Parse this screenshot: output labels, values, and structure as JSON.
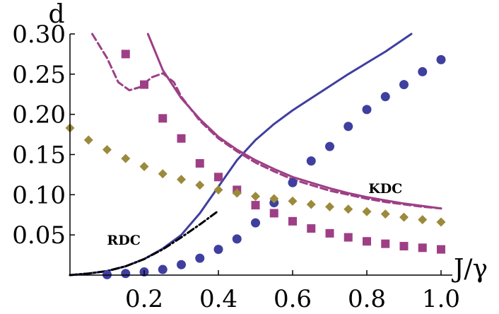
{
  "chart_data": {
    "type": "scatter",
    "xlabel": "J/γ",
    "ylabel": "d",
    "xlim": [
      0,
      1.0
    ],
    "ylim": [
      0,
      0.3
    ],
    "x_ticks": [
      "0.2",
      "0.4",
      "0.6",
      "0.8",
      "1.0"
    ],
    "x_tick_values": [
      0.2,
      0.4,
      0.6,
      0.8,
      1.0
    ],
    "y_ticks": [
      "0.05",
      "0.10",
      "0.15",
      "0.20",
      "0.25",
      "0.30"
    ],
    "y_tick_values": [
      0.05,
      0.1,
      0.15,
      0.2,
      0.25,
      0.3
    ],
    "annotations": [
      {
        "text": "KDC",
        "x": 0.85,
        "y": 0.102
      },
      {
        "text": "RDC",
        "x": 0.145,
        "y": 0.038
      }
    ],
    "series": [
      {
        "kind": "line",
        "style": "solid",
        "color": "#3f3f9f",
        "x": [
          0,
          0.05,
          0.1,
          0.15,
          0.2,
          0.25,
          0.3,
          0.35,
          0.4,
          0.45,
          0.5,
          0.55,
          0.6,
          0.65,
          0.7,
          0.75,
          0.8,
          0.85,
          0.92
        ],
        "y": [
          0,
          0.002,
          0.005,
          0.011,
          0.02,
          0.033,
          0.05,
          0.077,
          0.11,
          0.143,
          0.168,
          0.188,
          0.205,
          0.22,
          0.235,
          0.25,
          0.264,
          0.278,
          0.3
        ]
      },
      {
        "kind": "line",
        "style": "dashdot",
        "color": "#000000",
        "x": [
          0,
          0.05,
          0.1,
          0.15,
          0.2,
          0.25,
          0.3,
          0.35,
          0.4
        ],
        "y": [
          0,
          0.002,
          0.005,
          0.011,
          0.02,
          0.032,
          0.047,
          0.063,
          0.08
        ]
      },
      {
        "kind": "line",
        "style": "solid",
        "color": "#9e3f86",
        "x": [
          0.21,
          0.25,
          0.3,
          0.35,
          0.4,
          0.45,
          0.5,
          0.55,
          0.6,
          0.65,
          0.7,
          0.75,
          0.8,
          0.85,
          0.9,
          0.95,
          1.0
        ],
        "y": [
          0.3,
          0.255,
          0.22,
          0.194,
          0.172,
          0.156,
          0.143,
          0.132,
          0.122,
          0.115,
          0.108,
          0.102,
          0.097,
          0.093,
          0.089,
          0.086,
          0.083
        ]
      },
      {
        "kind": "line",
        "style": "dashed",
        "color": "#9e3f86",
        "x": [
          0.06,
          0.1,
          0.13,
          0.16,
          0.19,
          0.22,
          0.25,
          0.28,
          0.3,
          0.35,
          0.4,
          0.45,
          0.5,
          0.55,
          0.6,
          0.65,
          0.7,
          0.75,
          0.8,
          0.85,
          0.9,
          0.95,
          1.0
        ],
        "y": [
          0.3,
          0.27,
          0.24,
          0.23,
          0.234,
          0.246,
          0.251,
          0.24,
          0.222,
          0.192,
          0.17,
          0.154,
          0.14,
          0.129,
          0.119,
          0.112,
          0.105,
          0.1,
          0.095,
          0.091,
          0.088,
          0.085,
          0.083
        ]
      },
      {
        "kind": "points",
        "marker": "circle",
        "color": "#3f3f9f",
        "x": [
          0.1,
          0.15,
          0.2,
          0.25,
          0.3,
          0.35,
          0.4,
          0.45,
          0.5,
          0.55,
          0.6,
          0.65,
          0.7,
          0.75,
          0.8,
          0.85,
          0.9,
          0.95,
          1.0
        ],
        "y": [
          0.0005,
          0.002,
          0.004,
          0.007,
          0.013,
          0.021,
          0.032,
          0.045,
          0.065,
          0.09,
          0.115,
          0.142,
          0.16,
          0.185,
          0.206,
          0.222,
          0.237,
          0.253,
          0.268
        ]
      },
      {
        "kind": "points",
        "marker": "square",
        "color": "#9e3f86",
        "x": [
          0.15,
          0.2,
          0.25,
          0.3,
          0.35,
          0.4,
          0.45,
          0.5,
          0.55,
          0.6,
          0.65,
          0.7,
          0.75,
          0.8,
          0.85,
          0.9,
          0.95,
          1.0
        ],
        "y": [
          0.275,
          0.237,
          0.195,
          0.17,
          0.139,
          0.122,
          0.106,
          0.087,
          0.077,
          0.067,
          0.058,
          0.052,
          0.047,
          0.042,
          0.039,
          0.036,
          0.034,
          0.032
        ]
      },
      {
        "kind": "points",
        "marker": "diamond",
        "color": "#9c8a3c",
        "x": [
          0,
          0.05,
          0.1,
          0.15,
          0.2,
          0.25,
          0.3,
          0.35,
          0.4,
          0.45,
          0.5,
          0.55,
          0.6,
          0.65,
          0.7,
          0.75,
          0.8,
          0.85,
          0.9,
          0.95,
          1.0
        ],
        "y": [
          0.183,
          0.168,
          0.156,
          0.145,
          0.135,
          0.126,
          0.119,
          0.112,
          0.106,
          0.102,
          0.098,
          0.095,
          0.092,
          0.088,
          0.085,
          0.082,
          0.079,
          0.076,
          0.072,
          0.069,
          0.066
        ]
      }
    ]
  }
}
